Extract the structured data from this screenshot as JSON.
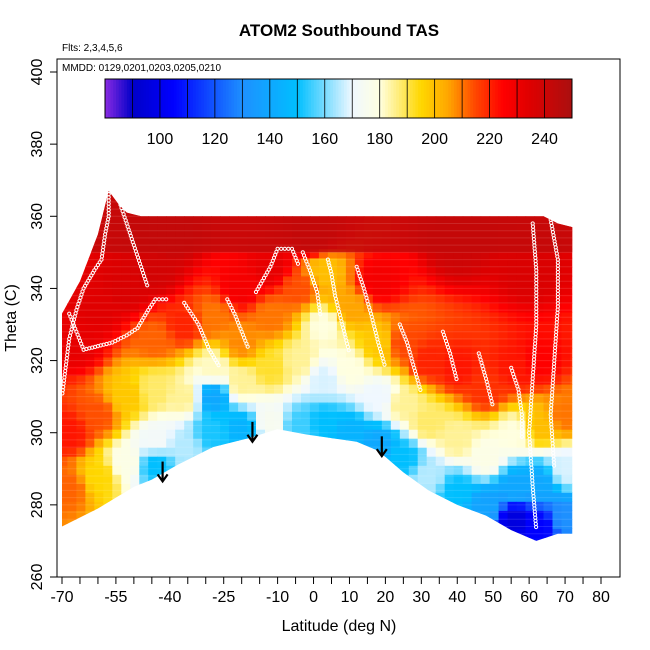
{
  "chart_data": {
    "type": "heatmap",
    "title": "ATOM2 Southbound TAS",
    "annotations": [
      "Flts: 2,3,4,5,6",
      "MMDD: 0129,0201,0203,0205,0210"
    ],
    "xlabel": "Latitude (deg N)",
    "ylabel": "Theta (C)",
    "xlim": [
      -70,
      80
    ],
    "ylim": [
      260,
      400
    ],
    "x_ticks": [
      -70,
      -55,
      -40,
      -25,
      -10,
      0,
      10,
      20,
      30,
      40,
      50,
      60,
      70,
      80
    ],
    "x_minor_ticks": [
      -65,
      -60,
      -50,
      -45,
      -35,
      -30,
      -20,
      -15,
      -5,
      5,
      15,
      25,
      35,
      45,
      55,
      65,
      75
    ],
    "y_ticks": [
      260,
      280,
      300,
      320,
      340,
      360,
      380,
      400
    ],
    "colorbar": {
      "range": [
        80,
        250
      ],
      "ticks": [
        100,
        120,
        140,
        160,
        180,
        200,
        220,
        240
      ],
      "stops": [
        {
          "v": 80,
          "color": "#8a2be2"
        },
        {
          "v": 90,
          "color": "#0000c8"
        },
        {
          "v": 105,
          "color": "#0000ff"
        },
        {
          "v": 130,
          "color": "#1e90ff"
        },
        {
          "v": 150,
          "color": "#00bfff"
        },
        {
          "v": 170,
          "color": "#f0f8ff"
        },
        {
          "v": 180,
          "color": "#ffffe0"
        },
        {
          "v": 195,
          "color": "#ffd700"
        },
        {
          "v": 205,
          "color": "#ffa500"
        },
        {
          "v": 215,
          "color": "#ff4500"
        },
        {
          "v": 225,
          "color": "#ff0000"
        },
        {
          "v": 235,
          "color": "#dd0000"
        },
        {
          "v": 250,
          "color": "#aa1010"
        }
      ]
    },
    "domain": {
      "lower_boundary": [
        [
          -70,
          274
        ],
        [
          -60,
          279
        ],
        [
          -55,
          282
        ],
        [
          -50,
          285
        ],
        [
          -45,
          287
        ],
        [
          -38,
          291
        ],
        [
          -28,
          296
        ],
        [
          -18,
          298.5
        ],
        [
          -10,
          301
        ],
        [
          -2,
          299.5
        ],
        [
          5,
          298.5
        ],
        [
          12,
          297.5
        ],
        [
          18,
          295
        ],
        [
          25,
          289
        ],
        [
          32,
          284
        ],
        [
          40,
          280
        ],
        [
          48,
          277
        ],
        [
          55,
          273
        ],
        [
          62,
          270
        ],
        [
          68,
          272
        ],
        [
          72,
          272
        ]
      ],
      "upper_boundary": [
        [
          -70,
          333
        ],
        [
          -65,
          342
        ],
        [
          -60,
          355
        ],
        [
          -57,
          367
        ],
        [
          -54,
          363
        ],
        [
          -52,
          361
        ],
        [
          -48,
          360
        ],
        [
          -40,
          360
        ],
        [
          -30,
          360
        ],
        [
          -20,
          360
        ],
        [
          -10,
          360
        ],
        [
          0,
          360
        ],
        [
          10,
          360
        ],
        [
          20,
          360
        ],
        [
          30,
          360
        ],
        [
          40,
          360
        ],
        [
          50,
          360
        ],
        [
          60,
          360
        ],
        [
          64,
          360
        ],
        [
          68,
          358
        ],
        [
          72,
          357
        ],
        [
          72,
          290
        ]
      ]
    },
    "field": [
      {
        "x": -68,
        "theta": 285,
        "tas": 212
      },
      {
        "x": -68,
        "theta": 300,
        "tas": 222
      },
      {
        "x": -66,
        "theta": 325,
        "tas": 232
      },
      {
        "x": -60,
        "theta": 288,
        "tas": 195
      },
      {
        "x": -60,
        "theta": 305,
        "tas": 214
      },
      {
        "x": -60,
        "theta": 335,
        "tas": 234
      },
      {
        "x": -52,
        "theta": 292,
        "tas": 178
      },
      {
        "x": -52,
        "theta": 310,
        "tas": 198
      },
      {
        "x": -52,
        "theta": 340,
        "tas": 236
      },
      {
        "x": -44,
        "theta": 291,
        "tas": 150
      },
      {
        "x": -44,
        "theta": 298,
        "tas": 172
      },
      {
        "x": -44,
        "theta": 312,
        "tas": 188
      },
      {
        "x": -44,
        "theta": 326,
        "tas": 212
      },
      {
        "x": -44,
        "theta": 345,
        "tas": 238
      },
      {
        "x": -36,
        "theta": 296,
        "tas": 165
      },
      {
        "x": -36,
        "theta": 310,
        "tas": 185
      },
      {
        "x": -36,
        "theta": 330,
        "tas": 220
      },
      {
        "x": -28,
        "theta": 300,
        "tas": 152
      },
      {
        "x": -28,
        "theta": 310,
        "tas": 140
      },
      {
        "x": -28,
        "theta": 318,
        "tas": 182
      },
      {
        "x": -28,
        "theta": 332,
        "tas": 210
      },
      {
        "x": -20,
        "theta": 301,
        "tas": 145
      },
      {
        "x": -20,
        "theta": 314,
        "tas": 185
      },
      {
        "x": -20,
        "theta": 325,
        "tas": 208
      },
      {
        "x": -20,
        "theta": 340,
        "tas": 228
      },
      {
        "x": -12,
        "theta": 303,
        "tas": 175
      },
      {
        "x": -12,
        "theta": 318,
        "tas": 192
      },
      {
        "x": -12,
        "theta": 332,
        "tas": 210
      },
      {
        "x": -12,
        "theta": 346,
        "tas": 232
      },
      {
        "x": -4,
        "theta": 302,
        "tas": 155
      },
      {
        "x": -4,
        "theta": 320,
        "tas": 185
      },
      {
        "x": -4,
        "theta": 340,
        "tas": 214
      },
      {
        "x": 3,
        "theta": 303,
        "tas": 150
      },
      {
        "x": 3,
        "theta": 315,
        "tas": 168
      },
      {
        "x": 3,
        "theta": 330,
        "tas": 180
      },
      {
        "x": 3,
        "theta": 345,
        "tas": 200
      },
      {
        "x": 10,
        "theta": 300,
        "tas": 145
      },
      {
        "x": 10,
        "theta": 318,
        "tas": 180
      },
      {
        "x": 10,
        "theta": 335,
        "tas": 205
      },
      {
        "x": 18,
        "theta": 297,
        "tas": 140
      },
      {
        "x": 18,
        "theta": 310,
        "tas": 170
      },
      {
        "x": 18,
        "theta": 325,
        "tas": 198
      },
      {
        "x": 18,
        "theta": 342,
        "tas": 228
      },
      {
        "x": 25,
        "theta": 293,
        "tas": 150
      },
      {
        "x": 25,
        "theta": 308,
        "tas": 185
      },
      {
        "x": 25,
        "theta": 325,
        "tas": 215
      },
      {
        "x": 32,
        "theta": 288,
        "tas": 165
      },
      {
        "x": 32,
        "theta": 303,
        "tas": 188
      },
      {
        "x": 32,
        "theta": 320,
        "tas": 220
      },
      {
        "x": 40,
        "theta": 284,
        "tas": 150
      },
      {
        "x": 40,
        "theta": 298,
        "tas": 185
      },
      {
        "x": 40,
        "theta": 318,
        "tas": 222
      },
      {
        "x": 48,
        "theta": 280,
        "tas": 138
      },
      {
        "x": 48,
        "theta": 293,
        "tas": 178
      },
      {
        "x": 48,
        "theta": 312,
        "tas": 218
      },
      {
        "x": 56,
        "theta": 276,
        "tas": 96
      },
      {
        "x": 56,
        "theta": 285,
        "tas": 140
      },
      {
        "x": 56,
        "theta": 300,
        "tas": 180
      },
      {
        "x": 56,
        "theta": 318,
        "tas": 222
      },
      {
        "x": 63,
        "theta": 274,
        "tas": 105
      },
      {
        "x": 63,
        "theta": 286,
        "tas": 140
      },
      {
        "x": 63,
        "theta": 302,
        "tas": 200
      },
      {
        "x": 63,
        "theta": 320,
        "tas": 225
      },
      {
        "x": 70,
        "theta": 276,
        "tas": 130
      },
      {
        "x": 70,
        "theta": 290,
        "tas": 168
      },
      {
        "x": 70,
        "theta": 305,
        "tas": 210
      },
      {
        "x": 0,
        "theta": 355,
        "tas": 240
      },
      {
        "x": -40,
        "theta": 355,
        "tas": 242
      },
      {
        "x": 40,
        "theta": 352,
        "tas": 240
      },
      {
        "x": 60,
        "theta": 345,
        "tas": 236
      }
    ],
    "arrows": [
      {
        "x": -42,
        "theta": 292
      },
      {
        "x": -17,
        "theta": 303
      },
      {
        "x": 19,
        "theta": 299
      }
    ],
    "flight_tracks": [
      [
        [
          -57,
          367
        ],
        [
          -57,
          360
        ],
        [
          -58,
          355
        ],
        [
          -59,
          348
        ],
        [
          -61,
          345
        ],
        [
          -64,
          340
        ],
        [
          -66,
          334
        ],
        [
          -68,
          326
        ],
        [
          -69,
          318
        ],
        [
          -70,
          310
        ]
      ],
      [
        [
          -54,
          364
        ],
        [
          -52,
          358
        ],
        [
          -50,
          352
        ],
        [
          -48,
          346
        ],
        [
          -46,
          340
        ]
      ],
      [
        [
          -68,
          333
        ],
        [
          -64,
          323
        ],
        [
          -60,
          324
        ],
        [
          -56,
          325
        ],
        [
          -52,
          327
        ],
        [
          -49,
          329
        ],
        [
          -46,
          334
        ],
        [
          -44,
          337
        ],
        [
          -40,
          337
        ]
      ],
      [
        [
          -36,
          336
        ],
        [
          -32,
          330
        ],
        [
          -29,
          323
        ],
        [
          -26,
          318
        ]
      ],
      [
        [
          -24,
          337
        ],
        [
          -22,
          333
        ],
        [
          -20,
          328
        ],
        [
          -18,
          323
        ]
      ],
      [
        [
          -16,
          339
        ],
        [
          -12,
          346
        ],
        [
          -10,
          351
        ],
        [
          -6,
          351
        ],
        [
          -4,
          346
        ]
      ],
      [
        [
          -3,
          350
        ],
        [
          -1,
          345
        ],
        [
          1,
          339
        ],
        [
          2,
          332
        ]
      ],
      [
        [
          4,
          348
        ],
        [
          5,
          344
        ],
        [
          6,
          338
        ],
        [
          8,
          330
        ],
        [
          10,
          322
        ]
      ],
      [
        [
          12,
          346
        ],
        [
          14,
          340
        ],
        [
          16,
          333
        ],
        [
          18,
          325
        ],
        [
          20,
          318
        ]
      ],
      [
        [
          24,
          330
        ],
        [
          26,
          325
        ],
        [
          28,
          318
        ],
        [
          30,
          311
        ]
      ],
      [
        [
          36,
          328
        ],
        [
          38,
          322
        ],
        [
          40,
          314
        ]
      ],
      [
        [
          46,
          322
        ],
        [
          48,
          315
        ],
        [
          50,
          307
        ]
      ],
      [
        [
          55,
          318
        ],
        [
          57,
          312
        ],
        [
          58,
          305
        ],
        [
          58,
          298
        ]
      ],
      [
        [
          61,
          358
        ],
        [
          62,
          345
        ],
        [
          62,
          330
        ],
        [
          61,
          315
        ],
        [
          60,
          300
        ],
        [
          61,
          285
        ],
        [
          62,
          273
        ]
      ],
      [
        [
          66,
          359
        ],
        [
          68,
          348
        ],
        [
          68,
          335
        ],
        [
          67,
          320
        ],
        [
          66,
          305
        ],
        [
          67,
          290
        ]
      ]
    ]
  }
}
